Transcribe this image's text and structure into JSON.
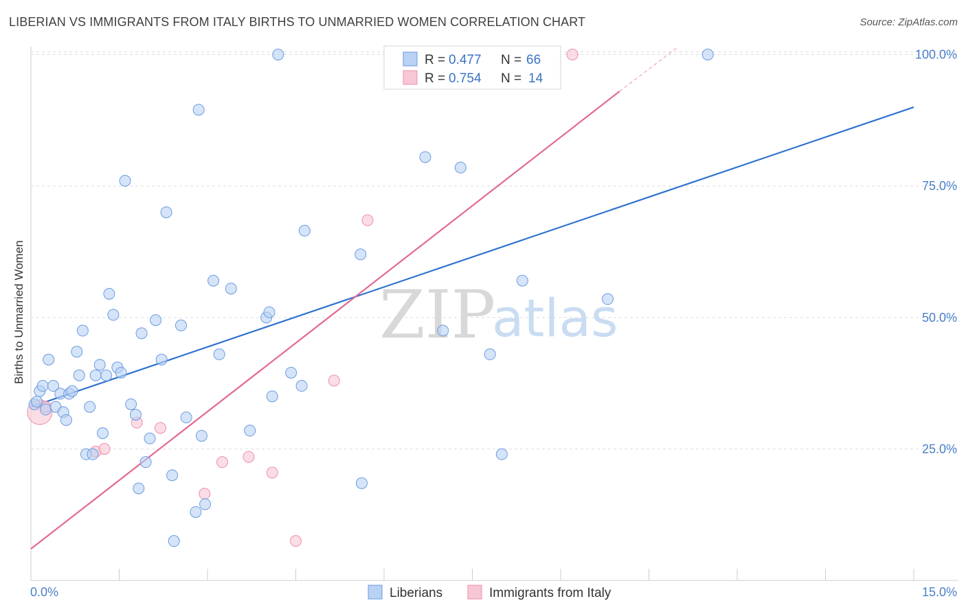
{
  "title": "LIBERIAN VS IMMIGRANTS FROM ITALY BIRTHS TO UNMARRIED WOMEN CORRELATION CHART",
  "source": "Source: ZipAtlas.com",
  "watermark": {
    "zip": "ZIP",
    "atlas": "atlas"
  },
  "colors": {
    "blue_fill": "#b9d2f3",
    "blue_stroke": "#6a9be0",
    "blue_line": "#2f72d0",
    "pink_fill": "#f8c6d4",
    "pink_stroke": "#ec8fab",
    "pink_line": "#e26892",
    "grid": "#dddddd",
    "axis_text": "#4a7fc8"
  },
  "legend": {
    "rows": [
      {
        "r_label": "R = ",
        "r_value": "0.477",
        "n_label": "N = ",
        "n_value": "66"
      },
      {
        "r_label": "R = ",
        "r_value": "0.754",
        "n_label": "N = ",
        "n_value": "14"
      }
    ],
    "bottom": [
      "Liberians",
      "Immigrants from Italy"
    ]
  },
  "chart_data": {
    "type": "scatter",
    "title": "LIBERIAN VS IMMIGRANTS FROM ITALY BIRTHS TO UNMARRIED WOMEN CORRELATION CHART",
    "xlabel": "",
    "ylabel": "Births to Unmarried Women",
    "xlim": [
      0,
      15
    ],
    "ylim": [
      0,
      105
    ],
    "x_tick_labels": [
      "0.0%",
      "15.0%"
    ],
    "y_ticks": [
      {
        "value": 25,
        "label": "25.0%"
      },
      {
        "value": 50,
        "label": "50.0%"
      },
      {
        "value": 75,
        "label": "75.0%"
      },
      {
        "value": 100,
        "label": "100.0%"
      }
    ],
    "series": [
      {
        "name": "Liberians",
        "r": 0.477,
        "n": 66,
        "trend": {
          "x": [
            0,
            15
          ],
          "y": [
            33,
            90
          ]
        },
        "points": [
          [
            0.06,
            33.5
          ],
          [
            0.1,
            34
          ],
          [
            0.15,
            36
          ],
          [
            0.2,
            37
          ],
          [
            0.25,
            32.5
          ],
          [
            0.3,
            42
          ],
          [
            0.38,
            37
          ],
          [
            0.42,
            33
          ],
          [
            0.5,
            35.5
          ],
          [
            0.55,
            32
          ],
          [
            0.6,
            30.5
          ],
          [
            0.65,
            35.5
          ],
          [
            0.7,
            36
          ],
          [
            0.78,
            43.5
          ],
          [
            0.82,
            39
          ],
          [
            0.88,
            47.5
          ],
          [
            0.94,
            24
          ],
          [
            1.0,
            33
          ],
          [
            1.05,
            24
          ],
          [
            1.1,
            39
          ],
          [
            1.17,
            41
          ],
          [
            1.22,
            28
          ],
          [
            1.28,
            39
          ],
          [
            1.33,
            54.5
          ],
          [
            1.4,
            50.5
          ],
          [
            1.47,
            40.5
          ],
          [
            1.53,
            39.5
          ],
          [
            1.6,
            76
          ],
          [
            1.7,
            33.5
          ],
          [
            1.78,
            31.5
          ],
          [
            1.83,
            17.5
          ],
          [
            1.88,
            47
          ],
          [
            1.95,
            22.5
          ],
          [
            2.02,
            27
          ],
          [
            2.12,
            49.5
          ],
          [
            2.22,
            42
          ],
          [
            2.3,
            70
          ],
          [
            2.4,
            20
          ],
          [
            2.43,
            7.5
          ],
          [
            2.55,
            48.5
          ],
          [
            2.64,
            31
          ],
          [
            2.8,
            13
          ],
          [
            2.85,
            89.5
          ],
          [
            2.9,
            27.5
          ],
          [
            2.96,
            14.5
          ],
          [
            3.1,
            57
          ],
          [
            3.2,
            43
          ],
          [
            3.4,
            55.5
          ],
          [
            3.72,
            28.5
          ],
          [
            4.0,
            50
          ],
          [
            4.05,
            51
          ],
          [
            4.1,
            35
          ],
          [
            4.2,
            100
          ],
          [
            4.42,
            39.5
          ],
          [
            4.6,
            37
          ],
          [
            4.65,
            66.5
          ],
          [
            5.6,
            62
          ],
          [
            5.62,
            18.5
          ],
          [
            6.7,
            80.5
          ],
          [
            7.0,
            47.5
          ],
          [
            7.3,
            78.5
          ],
          [
            7.8,
            43
          ],
          [
            8.0,
            24
          ],
          [
            8.35,
            57
          ],
          [
            9.8,
            53.5
          ],
          [
            11.5,
            100
          ]
        ]
      },
      {
        "name": "Immigrants from Italy",
        "r": 0.754,
        "n": 14,
        "trend": {
          "x": [
            0,
            10
          ],
          "y": [
            6,
            93
          ],
          "dashed_to": {
            "x": 11.0,
            "y": 101.5
          }
        },
        "points": [
          [
            0.15,
            32
          ],
          [
            0.25,
            33
          ],
          [
            1.1,
            24.5
          ],
          [
            1.25,
            25
          ],
          [
            1.8,
            30
          ],
          [
            2.2,
            29
          ],
          [
            2.95,
            16.5
          ],
          [
            3.25,
            22.5
          ],
          [
            3.7,
            23.5
          ],
          [
            4.1,
            20.5
          ],
          [
            4.5,
            7.5
          ],
          [
            5.15,
            38
          ],
          [
            5.72,
            68.5
          ],
          [
            9.2,
            100
          ]
        ]
      }
    ]
  }
}
